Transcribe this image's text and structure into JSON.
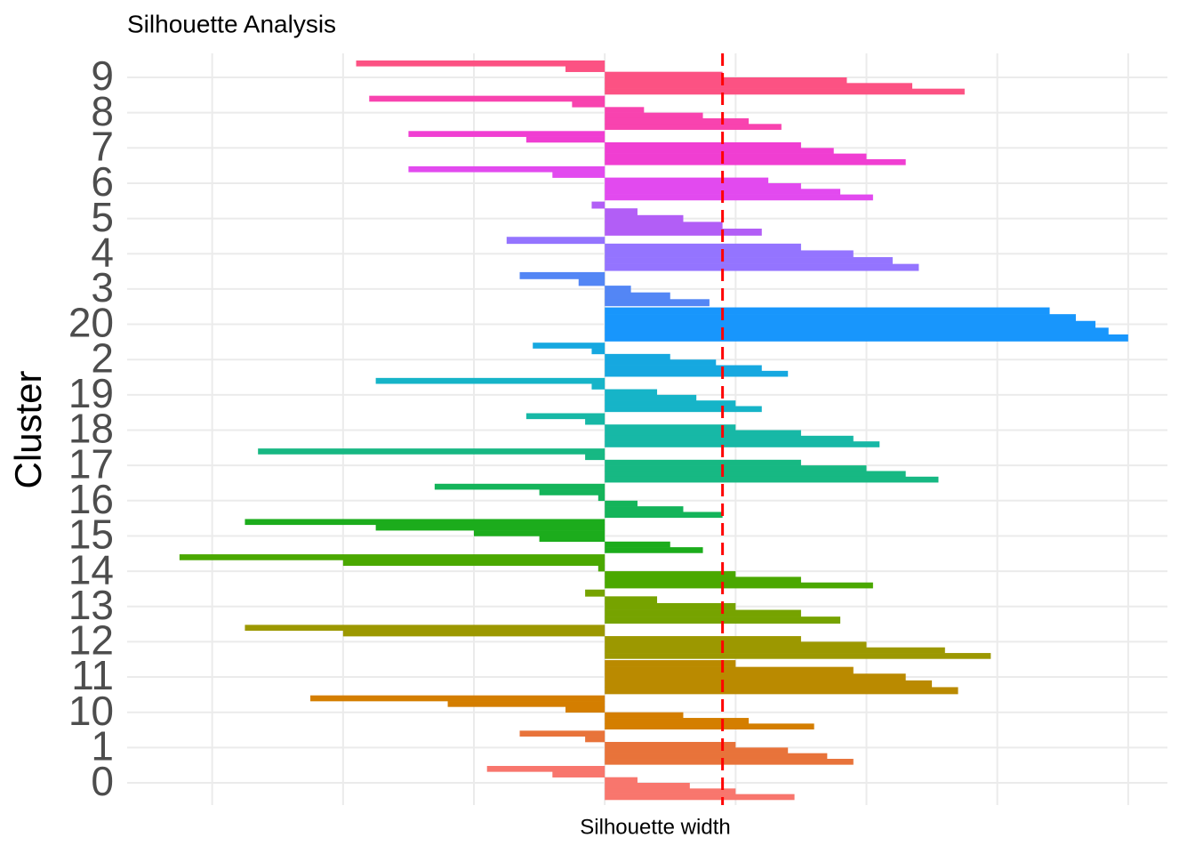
{
  "chart_data": {
    "type": "silhouette",
    "title": "Silhouette Analysis",
    "x_label": "Silhouette width",
    "y_label": "Cluster",
    "xlim": [
      -0.73,
      0.86
    ],
    "xticks": [
      -0.6,
      -0.4,
      -0.2,
      0,
      0.2,
      0.4,
      0.6,
      0.8
    ],
    "grid": true,
    "mean_line": {
      "value": 0.18,
      "color": "#ff0000"
    },
    "clusters": [
      {
        "name": "0",
        "color": "#F8766D",
        "values": [
          -0.18,
          -0.08,
          0.05,
          0.13,
          0.2,
          0.29
        ]
      },
      {
        "name": "1",
        "color": "#E8733A",
        "values": [
          -0.13,
          -0.03,
          0.2,
          0.28,
          0.34,
          0.38
        ]
      },
      {
        "name": "10",
        "color": "#D47E00",
        "values": [
          -0.45,
          -0.24,
          -0.06,
          0.12,
          0.22,
          0.32
        ]
      },
      {
        "name": "11",
        "color": "#BA8A00",
        "values": [
          0.2,
          0.38,
          0.46,
          0.5,
          0.54
        ]
      },
      {
        "name": "12",
        "color": "#9C9800",
        "values": [
          -0.55,
          -0.4,
          0.3,
          0.4,
          0.52,
          0.59
        ]
      },
      {
        "name": "13",
        "color": "#76A300",
        "values": [
          -0.03,
          0.08,
          0.2,
          0.3,
          0.36
        ]
      },
      {
        "name": "14",
        "color": "#4AA800",
        "values": [
          -0.65,
          -0.4,
          -0.01,
          0.2,
          0.3,
          0.41
        ]
      },
      {
        "name": "15",
        "color": "#1CAC1C",
        "values": [
          -0.55,
          -0.35,
          -0.2,
          -0.1,
          0.1,
          0.15
        ]
      },
      {
        "name": "16",
        "color": "#14B45A",
        "values": [
          -0.26,
          -0.1,
          -0.01,
          0.05,
          0.12,
          0.18
        ]
      },
      {
        "name": "17",
        "color": "#17B883",
        "values": [
          -0.53,
          -0.03,
          0.3,
          0.4,
          0.46,
          0.51
        ]
      },
      {
        "name": "18",
        "color": "#17B8A6",
        "values": [
          -0.12,
          -0.03,
          0.2,
          0.3,
          0.38,
          0.42
        ]
      },
      {
        "name": "19",
        "color": "#16B4C8",
        "values": [
          -0.35,
          -0.02,
          0.08,
          0.14,
          0.2,
          0.24
        ]
      },
      {
        "name": "2",
        "color": "#16A8E0",
        "values": [
          -0.11,
          -0.02,
          0.1,
          0.17,
          0.24,
          0.28
        ]
      },
      {
        "name": "20",
        "color": "#1896FC",
        "values": [
          0.68,
          0.72,
          0.75,
          0.77,
          0.8
        ]
      },
      {
        "name": "3",
        "color": "#5386F5",
        "values": [
          -0.13,
          -0.04,
          0.04,
          0.1,
          0.16
        ]
      },
      {
        "name": "4",
        "color": "#9474FF",
        "values": [
          -0.15,
          0.3,
          0.38,
          0.44,
          0.48
        ]
      },
      {
        "name": "5",
        "color": "#B25EF6",
        "values": [
          -0.02,
          0.05,
          0.12,
          0.18,
          0.24
        ]
      },
      {
        "name": "6",
        "color": "#E24AEF",
        "values": [
          -0.3,
          -0.08,
          0.25,
          0.3,
          0.36,
          0.41
        ]
      },
      {
        "name": "7",
        "color": "#F03ED2",
        "values": [
          -0.3,
          -0.12,
          0.3,
          0.35,
          0.4,
          0.46
        ]
      },
      {
        "name": "8",
        "color": "#F843AF",
        "values": [
          -0.36,
          -0.05,
          0.06,
          0.15,
          0.22,
          0.27
        ]
      },
      {
        "name": "9",
        "color": "#FC5283",
        "values": [
          -0.38,
          -0.06,
          0.18,
          0.37,
          0.47,
          0.55
        ]
      }
    ]
  }
}
